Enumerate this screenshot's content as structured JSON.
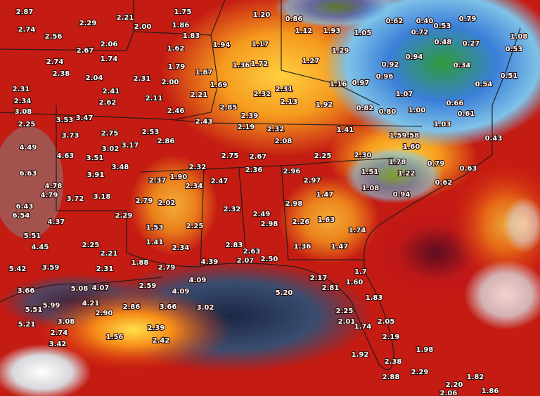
{
  "labels": [
    "2.87",
    "2.74",
    "2.29",
    "2.21",
    "1.75",
    "1.20",
    "0.86",
    "0.62",
    "0.40",
    "0.79",
    "2.56",
    "2.00",
    "1.86",
    "1.12",
    "1.93",
    "1.05",
    "0.72",
    "0.53",
    "1.08",
    "1.83",
    "2.67",
    "2.06",
    "1.94",
    "1.17",
    "0.48",
    "0.27",
    "0.53",
    "1.62",
    "1.29",
    "2.74",
    "1.74",
    "0.94",
    "1.27",
    "1.36",
    "1.72",
    "0.92",
    "0.34",
    "2.38",
    "2.04",
    "2.31",
    "1.79",
    "1.87",
    "0.96",
    "0.51",
    "2.00",
    "1.69",
    "1.16",
    "0.97",
    "0.54",
    "2.31",
    "2.41",
    "2.32",
    "2.31",
    "1.07",
    "2.34",
    "2.62",
    "2.11",
    "2.21",
    "2.13",
    "1.92",
    "0.66",
    "3.08",
    "3.53",
    "3.47",
    "2.46",
    "2.85",
    "0.82",
    "0.80",
    "1.00",
    "0.61",
    "2.39",
    "2.25",
    "2.43",
    "2.19",
    "2.32",
    "1.41",
    "1.03",
    "3.73",
    "2.75",
    "2.53",
    "1.59.58",
    "0.43",
    "2.86",
    "2.08",
    "4.49",
    "3.02",
    "3.17",
    "1.60",
    "4.63",
    "3.51",
    "2.75",
    "2.67",
    "2.25",
    "2.30",
    "1.78",
    "0.79",
    "6.63",
    "3.48",
    "2.32",
    "2.36",
    "2.96",
    "1.51",
    "1.22",
    "0.63",
    "3.91",
    "2.37",
    "1.90",
    "2.47",
    "2.97",
    "0.62",
    "4.78",
    "2.34",
    "1.08",
    "4.79",
    "3.72",
    "3.18",
    "1.47",
    "0.94",
    "2.79",
    "2.02",
    "6.43",
    "2.98",
    "6.54",
    "2.29",
    "2.32",
    "2.49",
    "4.37",
    "2.98",
    "2.26",
    "1.63",
    "1.53",
    "2.25",
    "1.74",
    "5.51",
    "1.41",
    "4.45",
    "2.25",
    "2.34",
    "2.83",
    "1.36",
    "1.47",
    "2.21",
    "2.63",
    "1.88",
    "4.39",
    "2.07",
    "2.50",
    "5.42",
    "3.59",
    "2.31",
    "2.79",
    "2.17",
    "1.7",
    "4.09",
    "2.59",
    "2.81",
    "1.60",
    "3.66",
    "5.08",
    "4.07",
    "4.09",
    "5.20",
    "1.83",
    "4.21",
    "2.86",
    "3.66",
    "3.02",
    "5.51",
    "5.99",
    "2.90",
    "2.25",
    "3.08",
    "2.01",
    "2.05",
    "5.21",
    "1.74",
    "2.39",
    "2.74",
    "1.56",
    "2.19",
    "2.42",
    "3.42",
    "1.98",
    "1.92",
    "2.38",
    "2.29",
    "2.88",
    "1.82",
    "2.20",
    "1.86",
    "2.06"
  ]
}
